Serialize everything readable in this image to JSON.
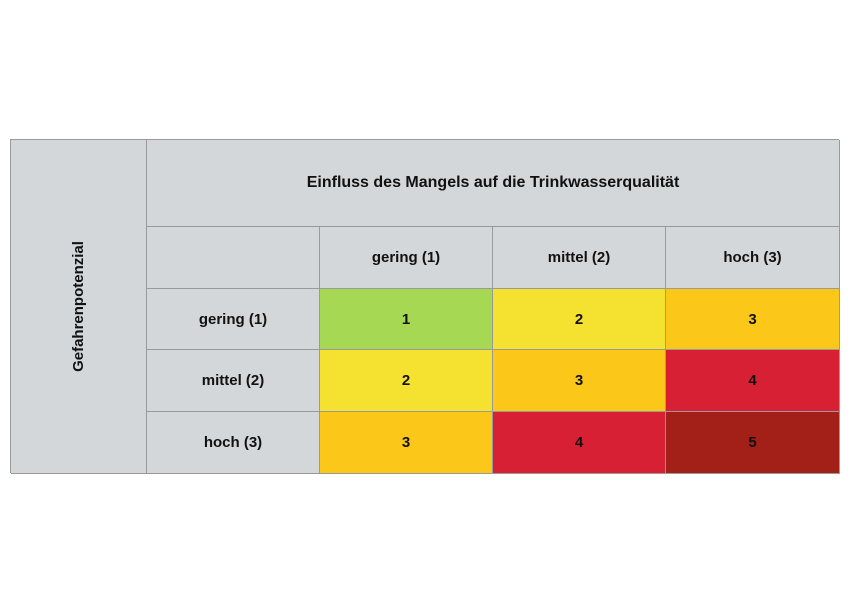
{
  "axis_labels": {
    "y": "Gefahrenpotenzial",
    "x": "Einfluss des Mangels auf die Trinkwasserqualität"
  },
  "columns": [
    "gering (1)",
    "mittel (2)",
    "hoch (3)"
  ],
  "rows": [
    "gering (1)",
    "mittel (2)",
    "hoch (3)"
  ],
  "cells": [
    [
      "1",
      "2",
      "3"
    ],
    [
      "2",
      "3",
      "4"
    ],
    [
      "3",
      "4",
      "5"
    ]
  ],
  "level_colors": {
    "1": "#a6d854",
    "2": "#f5e12f",
    "3": "#fbc719",
    "4": "#d72034",
    "5": "#a32019"
  }
}
